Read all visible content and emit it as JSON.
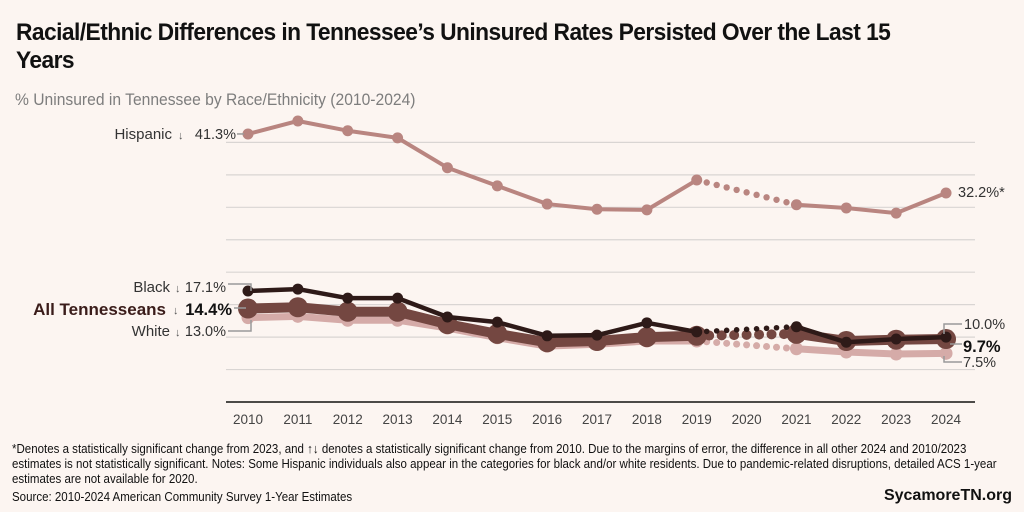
{
  "header": {
    "title": "Racial/Ethnic Differences in Tennessee’s Uninsured Rates Persisted Over the Last 15 Years",
    "subtitle": "% Uninsured in Tennessee by Race/Ethnicity (2010-2024)"
  },
  "colors": {
    "hispanic": "#b98580",
    "all": "#744741",
    "black": "#2e1a18",
    "white": "#d5aba8",
    "grid": "#d9d5d3",
    "axis": "#111111",
    "background": "#fcf5f1"
  },
  "chart_data": {
    "type": "line",
    "title": "Racial/Ethnic Differences in Tennessee’s Uninsured Rates Persisted Over the Last 15 Years",
    "subtitle": "% Uninsured in Tennessee by Race/Ethnicity (2010-2024)",
    "xlabel": "",
    "ylabel": "% Uninsured",
    "x": [
      "2010",
      "2011",
      "2012",
      "2013",
      "2014",
      "2015",
      "2016",
      "2017",
      "2018",
      "2019",
      "2020",
      "2021",
      "2022",
      "2023",
      "2024"
    ],
    "ylim": [
      0,
      45
    ],
    "grid": true,
    "gridlines": [
      5,
      10,
      15,
      20,
      25,
      30,
      35,
      40
    ],
    "missing_years": [
      "2020"
    ],
    "missing_note": "2020 data unavailable; dotted line bridges 2019 to 2021",
    "series": [
      {
        "name": "Hispanic",
        "key": "hispanic",
        "arrow": "↓",
        "values": [
          41.3,
          43.3,
          41.8,
          40.7,
          36.1,
          33.3,
          30.5,
          29.7,
          29.6,
          34.2,
          null,
          30.4,
          29.9,
          29.1,
          32.2
        ],
        "start_label": "41.3%",
        "end_label": "32.2%*"
      },
      {
        "name": "Black",
        "key": "black",
        "arrow": "↓",
        "values": [
          17.1,
          17.4,
          16.0,
          16.0,
          13.1,
          12.3,
          10.2,
          10.3,
          12.2,
          10.8,
          null,
          11.6,
          9.2,
          9.7,
          10.0
        ],
        "start_label": "17.1%",
        "end_label": "10.0%"
      },
      {
        "name": "All Tennesseans",
        "key": "all",
        "arrow": "↓",
        "values": [
          14.4,
          14.6,
          13.9,
          13.9,
          12.0,
          10.5,
          9.2,
          9.4,
          10.0,
          10.2,
          null,
          10.5,
          9.4,
          9.6,
          9.7
        ],
        "start_label": "14.4%",
        "end_label": "9.7%"
      },
      {
        "name": "White",
        "key": "white",
        "arrow": "↓",
        "values": [
          13.0,
          13.2,
          12.6,
          12.6,
          11.4,
          9.9,
          8.6,
          8.9,
          9.4,
          9.4,
          null,
          8.2,
          7.7,
          7.4,
          7.5
        ],
        "start_label": "13.0%",
        "end_label": "7.5%"
      }
    ]
  },
  "footer": {
    "footnote": "*Denotes a statistically significant change from 2023, and ↑↓ denotes a statistically significant change from 2010. Due to the margins of error, the difference in all other 2024 and 2010/2023 estimates is not statistically significant. Notes: Some Hispanic individuals also appear in the categories for black and/or white residents. Due to pandemic-related disruptions, detailed ACS 1-year estimates are not available for 2020.",
    "source": "Source: 2010-2024 American Community Survey 1-Year Estimates",
    "brand": "SycamoreTN.org"
  }
}
